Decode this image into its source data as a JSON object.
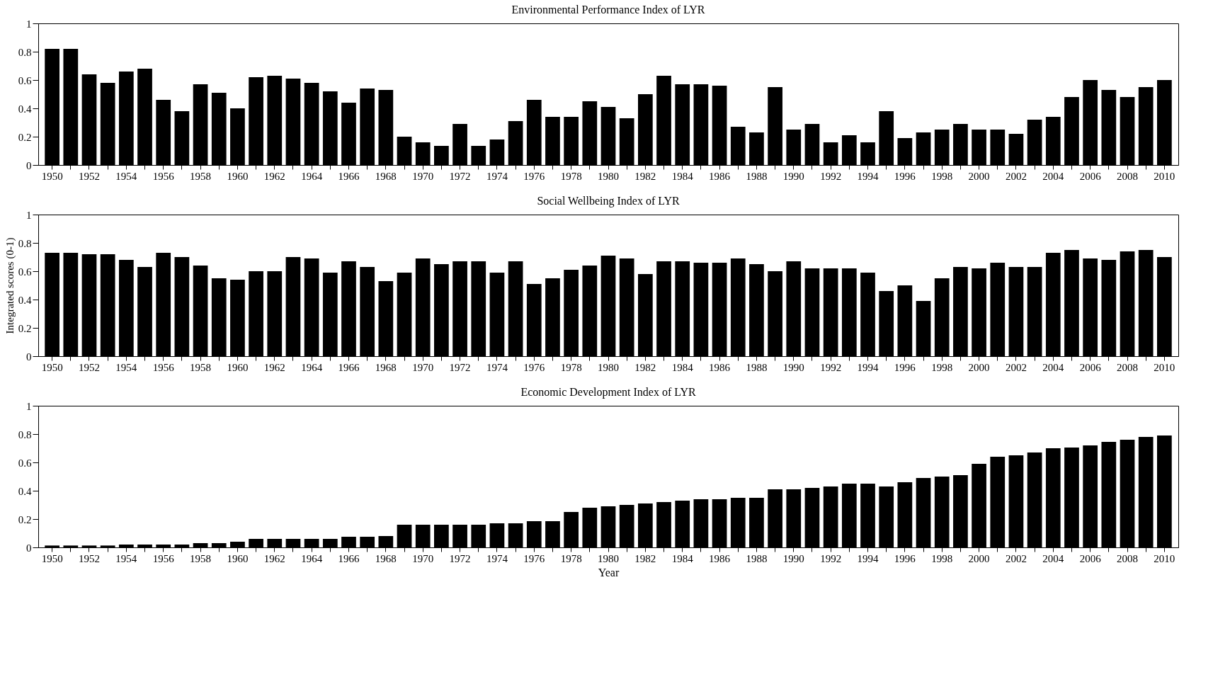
{
  "chart_data": [
    {
      "type": "bar",
      "title": "Environmental Performance Index of LYR",
      "color": "#000000",
      "ylim": [
        0,
        1
      ],
      "yticks": [
        0,
        0.2,
        0.4,
        0.6,
        0.8,
        1
      ],
      "categories": [
        "1950",
        null,
        "1952",
        null,
        "1954",
        null,
        "1956",
        null,
        "1958",
        null,
        "1960",
        null,
        "1962",
        null,
        "1964",
        null,
        "1966",
        null,
        "1968",
        null,
        "1970",
        null,
        "1972",
        null,
        "1974",
        null,
        "1976",
        null,
        "1978",
        null,
        "1980",
        null,
        "1982",
        null,
        "1984",
        null,
        "1986",
        null,
        "1988",
        null,
        "1990",
        null,
        "1992",
        null,
        "1994",
        null,
        "1996",
        null,
        "1998",
        null,
        "2000",
        null,
        "2002",
        null,
        "2004",
        null,
        "2006",
        null,
        "2008",
        null,
        "2010"
      ],
      "values": [
        0.82,
        0.82,
        0.64,
        0.58,
        0.66,
        0.68,
        0.46,
        0.38,
        0.57,
        0.51,
        0.4,
        0.62,
        0.63,
        0.61,
        0.58,
        0.52,
        0.44,
        0.54,
        0.53,
        0.2,
        0.16,
        0.135,
        0.29,
        0.135,
        0.18,
        0.31,
        0.46,
        0.34,
        0.34,
        0.45,
        0.41,
        0.33,
        0.5,
        0.63,
        0.57,
        0.57,
        0.56,
        0.27,
        0.23,
        0.55,
        0.25,
        0.29,
        0.16,
        0.21,
        0.16,
        0.38,
        0.19,
        0.23,
        0.25,
        0.29,
        0.25,
        0.25,
        0.22,
        0.32,
        0.34,
        0.48,
        0.6,
        0.53,
        0.48,
        0.55,
        0.6
      ]
    },
    {
      "type": "bar",
      "title": "Social Wellbeing Index of LYR",
      "ylabel": "Integrated scores (0-1)",
      "color": "#000000",
      "ylim": [
        0,
        1
      ],
      "yticks": [
        0,
        0.2,
        0.4,
        0.6,
        0.8,
        1
      ],
      "categories": [
        "1950",
        null,
        "1952",
        null,
        "1954",
        null,
        "1956",
        null,
        "1958",
        null,
        "1960",
        null,
        "1962",
        null,
        "1964",
        null,
        "1966",
        null,
        "1968",
        null,
        "1970",
        null,
        "1972",
        null,
        "1974",
        null,
        "1976",
        null,
        "1978",
        null,
        "1980",
        null,
        "1982",
        null,
        "1984",
        null,
        "1986",
        null,
        "1988",
        null,
        "1990",
        null,
        "1992",
        null,
        "1994",
        null,
        "1996",
        null,
        "1998",
        null,
        "2000",
        null,
        "2002",
        null,
        "2004",
        null,
        "2006",
        null,
        "2008",
        null,
        "2010"
      ],
      "values": [
        0.73,
        0.73,
        0.72,
        0.72,
        0.68,
        0.63,
        0.73,
        0.7,
        0.64,
        0.55,
        0.54,
        0.6,
        0.6,
        0.7,
        0.69,
        0.59,
        0.67,
        0.63,
        0.53,
        0.59,
        0.69,
        0.65,
        0.67,
        0.67,
        0.59,
        0.67,
        0.51,
        0.55,
        0.61,
        0.64,
        0.71,
        0.69,
        0.58,
        0.67,
        0.67,
        0.66,
        0.66,
        0.69,
        0.65,
        0.6,
        0.67,
        0.62,
        0.62,
        0.62,
        0.59,
        0.46,
        0.5,
        0.39,
        0.55,
        0.63,
        0.62,
        0.66,
        0.63,
        0.63,
        0.73,
        0.75,
        0.69,
        0.68,
        0.74,
        0.75,
        0.7
      ]
    },
    {
      "type": "bar",
      "title": "Economic Development Index of LYR",
      "xlabel": "Year",
      "color": "#000000",
      "ylim": [
        0,
        1
      ],
      "yticks": [
        0,
        0.2,
        0.4,
        0.6,
        0.8,
        1
      ],
      "categories": [
        "1950",
        null,
        "1952",
        null,
        "1954",
        null,
        "1956",
        null,
        "1958",
        null,
        "1960",
        null,
        "1962",
        null,
        "1964",
        null,
        "1966",
        null,
        "1968",
        null,
        "1970",
        null,
        "1972",
        null,
        "1974",
        null,
        "1976",
        null,
        "1978",
        null,
        "1980",
        null,
        "1982",
        null,
        "1984",
        null,
        "1986",
        null,
        "1988",
        null,
        "1990",
        null,
        "1992",
        null,
        "1994",
        null,
        "1996",
        null,
        "1998",
        null,
        "2000",
        null,
        "2002",
        null,
        "2004",
        null,
        "2006",
        null,
        "2008",
        null,
        "2010"
      ],
      "values": [
        0.013,
        0.013,
        0.013,
        0.013,
        0.02,
        0.02,
        0.02,
        0.02,
        0.03,
        0.03,
        0.04,
        0.06,
        0.06,
        0.06,
        0.06,
        0.06,
        0.075,
        0.075,
        0.08,
        0.16,
        0.16,
        0.16,
        0.16,
        0.16,
        0.17,
        0.17,
        0.185,
        0.185,
        0.25,
        0.28,
        0.29,
        0.3,
        0.31,
        0.32,
        0.33,
        0.34,
        0.34,
        0.35,
        0.35,
        0.41,
        0.41,
        0.42,
        0.43,
        0.45,
        0.45,
        0.43,
        0.46,
        0.49,
        0.5,
        0.51,
        0.59,
        0.64,
        0.65,
        0.67,
        0.7,
        0.705,
        0.72,
        0.745,
        0.76,
        0.78,
        0.79
      ]
    }
  ]
}
